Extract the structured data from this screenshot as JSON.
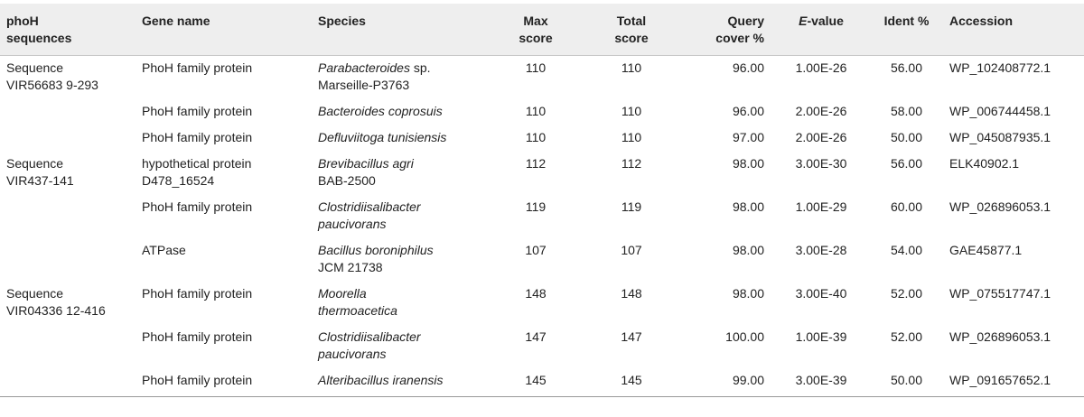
{
  "headers": {
    "seq": [
      "phoH",
      "sequences"
    ],
    "gene": "Gene name",
    "species": "Species",
    "max": [
      "Max",
      "score"
    ],
    "total": [
      "Total",
      "score"
    ],
    "cover": [
      "Query",
      "cover %"
    ],
    "evalue_italic": "E",
    "evalue_rest": "-value",
    "ident": "Ident %",
    "accession": "Accession"
  },
  "rows": [
    {
      "seq": [
        "Sequence",
        "VIR56683 9-293"
      ],
      "gene": [
        "PhoH family protein"
      ],
      "species_italic": "Parabacteroides",
      "species_rest": " sp.",
      "species_line2": "Marseille-P3763",
      "max": "110",
      "total": "110",
      "cover": "96.00",
      "evalue": "1.00E-26",
      "ident": "56.00",
      "accession": "WP_102408772.1"
    },
    {
      "seq": [
        "",
        ""
      ],
      "gene": [
        "PhoH family protein"
      ],
      "species_italic": "Bacteroides coprosuis",
      "species_rest": "",
      "species_line2": "",
      "max": "110",
      "total": "110",
      "cover": "96.00",
      "evalue": "2.00E-26",
      "ident": "58.00",
      "accession": "WP_006744458.1"
    },
    {
      "seq": [
        "",
        ""
      ],
      "gene": [
        "PhoH family protein"
      ],
      "species_italic": "Defluviitoga tunisiensis",
      "species_rest": "",
      "species_line2": "",
      "max": "110",
      "total": "110",
      "cover": "97.00",
      "evalue": "2.00E-26",
      "ident": "50.00",
      "accession": "WP_045087935.1"
    },
    {
      "seq": [
        "Sequence",
        "VIR437-141"
      ],
      "gene": [
        "hypothetical protein",
        "D478_16524"
      ],
      "species_italic": "Brevibacillus agri",
      "species_rest": "",
      "species_line2": "BAB-2500",
      "max": "112",
      "total": "112",
      "cover": "98.00",
      "evalue": "3.00E-30",
      "ident": "56.00",
      "accession": "ELK40902.1"
    },
    {
      "seq": [
        "",
        ""
      ],
      "gene": [
        "PhoH family protein"
      ],
      "species_italic": "Clostridiisalibacter",
      "species_rest": "",
      "species_line2_italic": "paucivorans",
      "max": "119",
      "total": "119",
      "cover": "98.00",
      "evalue": "1.00E-29",
      "ident": "60.00",
      "accession": "WP_026896053.1"
    },
    {
      "seq": [
        "",
        ""
      ],
      "gene": [
        "ATPase"
      ],
      "species_italic": "Bacillus boroniphilus",
      "species_rest": "",
      "species_line2": "JCM 21738",
      "max": "107",
      "total": "107",
      "cover": "98.00",
      "evalue": "3.00E-28",
      "ident": "54.00",
      "accession": "GAE45877.1"
    },
    {
      "seq": [
        "Sequence",
        "VIR04336 12-416"
      ],
      "gene": [
        "PhoH family protein"
      ],
      "species_italic": "Moorella",
      "species_rest": "",
      "species_line2_italic": "thermoacetica",
      "max": "148",
      "total": "148",
      "cover": "98.00",
      "evalue": "3.00E-40",
      "ident": "52.00",
      "accession": "WP_075517747.1"
    },
    {
      "seq": [
        "",
        ""
      ],
      "gene": [
        "PhoH family protein"
      ],
      "species_italic": "Clostridiisalibacter",
      "species_rest": "",
      "species_line2_italic": "paucivorans",
      "max": "147",
      "total": "147",
      "cover": "100.00",
      "evalue": "1.00E-39",
      "ident": "52.00",
      "accession": "WP_026896053.1"
    },
    {
      "seq": [
        "",
        ""
      ],
      "gene": [
        "PhoH family protein"
      ],
      "species_italic": "Alteribacillus iranensis",
      "species_rest": "",
      "species_line2": "",
      "max": "145",
      "total": "145",
      "cover": "99.00",
      "evalue": "3.00E-39",
      "ident": "50.00",
      "accession": "WP_091657652.1"
    }
  ]
}
